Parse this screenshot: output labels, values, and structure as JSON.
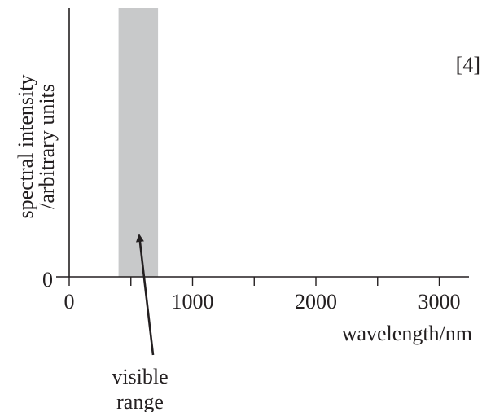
{
  "chart_data": {
    "type": "bar",
    "title": "",
    "xlabel": "wavelength/nm",
    "ylabel_lines": [
      "spectral intensity",
      "/arbitrary units"
    ],
    "xlim": [
      0,
      3250
    ],
    "x_ticks": [
      0,
      500,
      1000,
      1500,
      2000,
      2500,
      3000
    ],
    "x_tick_labels": [
      "0",
      "1000",
      "2000",
      "3000"
    ],
    "x_tick_label_values": [
      0,
      1000,
      2000,
      3000
    ],
    "y_tick_labels": [
      "0"
    ],
    "shaded_region": {
      "name": "visible",
      "x_start": 400,
      "x_end": 720,
      "color": "#c8c9ca"
    },
    "annotation": {
      "lines": [
        "visible",
        "range"
      ],
      "points_to_x": 570
    },
    "marks": "[4]",
    "grid": false,
    "colors": {
      "axis": "#231f20",
      "text": "#231f20",
      "band": "#c8c9ca"
    }
  }
}
